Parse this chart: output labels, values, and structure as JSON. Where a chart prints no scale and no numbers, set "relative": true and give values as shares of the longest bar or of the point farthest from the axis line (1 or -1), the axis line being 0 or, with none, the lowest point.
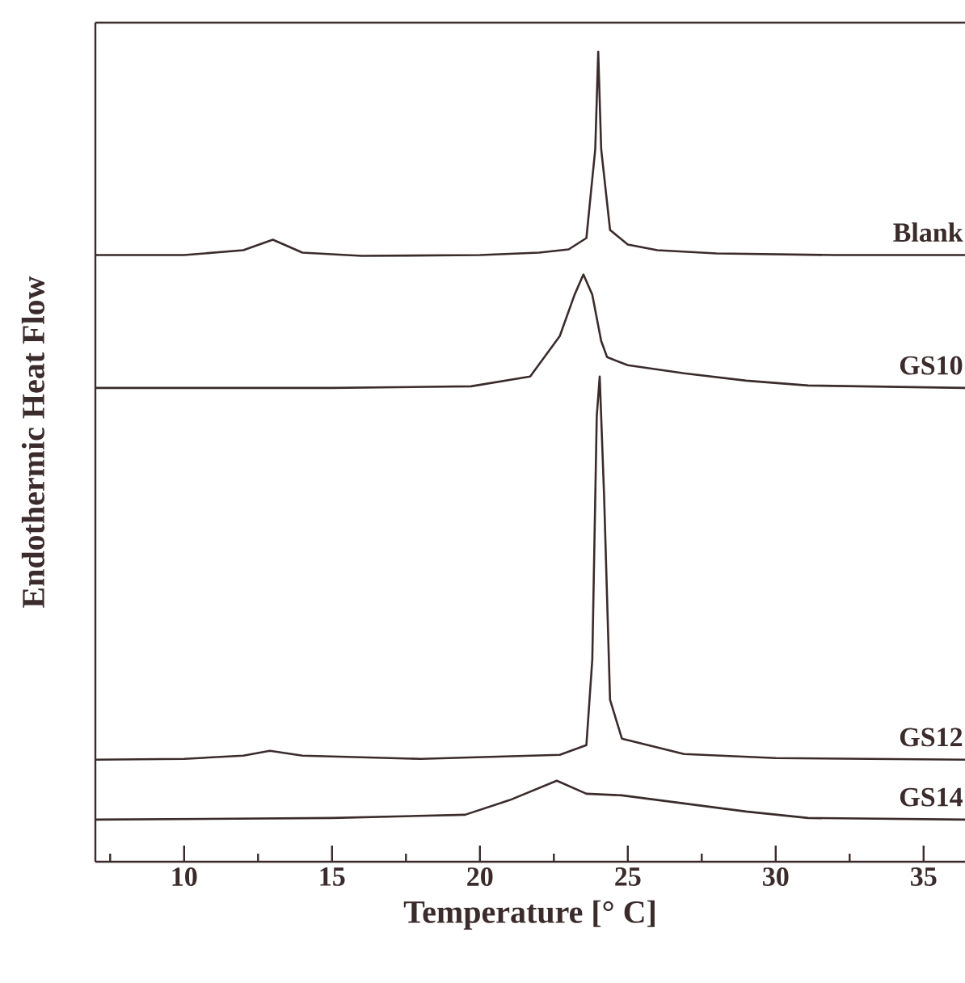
{
  "chart_data": {
    "type": "line",
    "xlabel": "Temperature [° C]",
    "ylabel": "Endothermic Heat Flow",
    "relative": true,
    "xlim": [
      7,
      36.4
    ],
    "xticks": [
      {
        "value": 7.5,
        "label": null
      },
      10,
      {
        "value": 12.5,
        "label": null
      },
      15,
      {
        "value": 17.5,
        "label": null
      },
      20,
      {
        "value": 22.5,
        "label": null
      },
      25,
      {
        "value": 27.5,
        "label": null
      },
      30,
      {
        "value": 32.5,
        "label": null
      },
      35
    ],
    "series": [
      {
        "name": "Blank",
        "color": "#3b2b2b",
        "x": [
          7,
          10,
          12,
          13,
          14,
          16,
          20,
          22,
          23,
          23.6,
          23.9,
          24.0,
          24.1,
          24.4,
          25,
          26,
          28,
          32,
          36.4
        ],
        "values": [
          0.749,
          0.749,
          0.755,
          0.768,
          0.752,
          0.748,
          0.749,
          0.752,
          0.756,
          0.77,
          0.88,
          1.0,
          0.88,
          0.78,
          0.762,
          0.755,
          0.751,
          0.749,
          0.749
        ]
      },
      {
        "name": "GS10",
        "color": "#3b2b2b",
        "x": [
          7,
          15,
          19.7,
          21.7,
          22.7,
          23.2,
          23.5,
          23.8,
          24.1,
          24.3,
          25,
          26.9,
          29,
          31.1,
          36.4
        ],
        "values": [
          0.585,
          0.585,
          0.587,
          0.599,
          0.649,
          0.7,
          0.725,
          0.7,
          0.643,
          0.623,
          0.613,
          0.603,
          0.594,
          0.588,
          0.585
        ]
      },
      {
        "name": "GS12",
        "color": "#3b2b2b",
        "x": [
          7,
          10,
          12,
          12.9,
          14,
          18,
          22.7,
          23.6,
          23.8,
          23.95,
          24.05,
          24.2,
          24.4,
          24.8,
          26.9,
          30,
          36.4
        ],
        "values": [
          0.126,
          0.127,
          0.131,
          0.137,
          0.131,
          0.127,
          0.132,
          0.144,
          0.25,
          0.55,
          0.599,
          0.45,
          0.2,
          0.152,
          0.133,
          0.128,
          0.126
        ]
      },
      {
        "name": "GS14",
        "color": "#3b2b2b",
        "x": [
          7,
          15,
          19.5,
          21,
          22.6,
          23.6,
          24.8,
          26.9,
          29,
          31.1,
          36.4
        ],
        "values": [
          0.052,
          0.054,
          0.058,
          0.076,
          0.1,
          0.084,
          0.082,
          0.072,
          0.062,
          0.054,
          0.052
        ]
      }
    ]
  }
}
